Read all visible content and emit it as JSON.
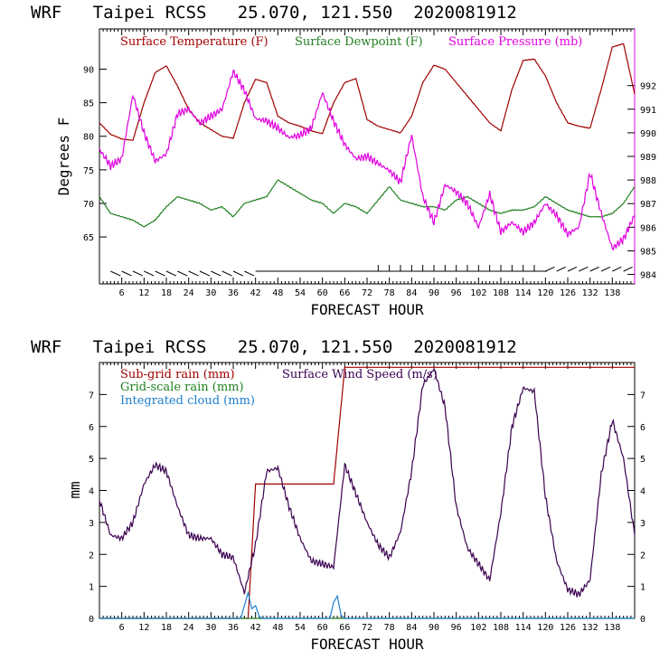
{
  "chart_data": [
    {
      "type": "line",
      "title": "WRF   Taipei RCSS   25.070, 121.550  2020081912",
      "xlabel": "FORECAST HOUR",
      "ylabel": "Degrees F",
      "xlim": [
        0,
        144
      ],
      "ylim": [
        58,
        96
      ],
      "y2lim": [
        983.6,
        994.4
      ],
      "x_ticks": [
        6,
        12,
        18,
        24,
        30,
        36,
        42,
        48,
        54,
        60,
        66,
        72,
        78,
        84,
        90,
        96,
        102,
        108,
        114,
        120,
        126,
        132,
        138
      ],
      "y_ticks": [
        65,
        70,
        75,
        80,
        85,
        90
      ],
      "y2_ticks": [
        984,
        985,
        986,
        987,
        988,
        989,
        990,
        991,
        992
      ],
      "series": [
        {
          "name": "Surface Temperature (F)",
          "color": "#a00000",
          "axis": "left",
          "x": [
            0,
            3,
            6,
            9,
            12,
            15,
            18,
            21,
            24,
            27,
            30,
            33,
            36,
            39,
            42,
            45,
            48,
            51,
            54,
            57,
            60,
            63,
            66,
            69,
            72,
            75,
            78,
            81,
            84,
            87,
            90,
            93,
            96,
            99,
            102,
            105,
            108,
            111,
            114,
            117,
            120,
            123,
            126,
            129,
            132,
            135,
            138,
            141,
            144
          ],
          "values": [
            82.0,
            80.3,
            79.6,
            79.4,
            85.0,
            89.5,
            90.5,
            87.5,
            84.0,
            82.0,
            81.0,
            80.0,
            79.7,
            85.0,
            88.5,
            88.0,
            83.0,
            82.0,
            81.5,
            80.8,
            80.4,
            85.0,
            88.0,
            88.6,
            82.5,
            81.5,
            81.0,
            80.5,
            83.0,
            88.0,
            90.6,
            90.0,
            88.0,
            86.0,
            84.0,
            82.0,
            80.8,
            87.0,
            91.3,
            91.5,
            89.0,
            85.0,
            82.0,
            81.5,
            81.2,
            87.0,
            93.3,
            93.8,
            86.3
          ]
        },
        {
          "name": "Surface Dewpoint (F)",
          "color": "#208020",
          "axis": "left",
          "x": [
            0,
            3,
            6,
            9,
            12,
            15,
            18,
            21,
            24,
            27,
            30,
            33,
            36,
            39,
            42,
            45,
            48,
            51,
            54,
            57,
            60,
            63,
            66,
            69,
            72,
            75,
            78,
            81,
            84,
            87,
            90,
            93,
            96,
            99,
            102,
            105,
            108,
            111,
            114,
            117,
            120,
            123,
            126,
            129,
            132,
            135,
            138,
            141,
            144
          ],
          "values": [
            71.0,
            68.5,
            68.0,
            67.5,
            66.5,
            67.5,
            69.5,
            71.0,
            70.5,
            70.0,
            69.0,
            69.5,
            68.0,
            70.0,
            70.5,
            71.0,
            73.5,
            72.5,
            71.5,
            70.5,
            70.0,
            68.5,
            70.0,
            69.5,
            68.5,
            70.5,
            72.5,
            70.5,
            70.0,
            69.5,
            69.5,
            69.0,
            70.5,
            71.0,
            70.0,
            69.0,
            68.5,
            69.0,
            69.0,
            69.5,
            71.0,
            70.0,
            69.0,
            68.5,
            68.0,
            68.0,
            68.5,
            70.0,
            72.5
          ]
        },
        {
          "name": "Surface Pressure (mb)",
          "color": "#e000e0",
          "axis": "right",
          "x": [
            0,
            3,
            6,
            9,
            12,
            15,
            18,
            21,
            24,
            27,
            30,
            33,
            36,
            39,
            42,
            45,
            48,
            51,
            54,
            57,
            60,
            63,
            66,
            69,
            72,
            75,
            78,
            81,
            84,
            87,
            90,
            93,
            96,
            99,
            102,
            105,
            108,
            111,
            114,
            117,
            120,
            123,
            126,
            129,
            132,
            135,
            138,
            141,
            144
          ],
          "values": [
            989.3,
            988.6,
            988.9,
            991.6,
            990.0,
            988.8,
            989.1,
            990.8,
            991.0,
            990.4,
            990.7,
            991.0,
            992.6,
            991.8,
            990.6,
            990.5,
            990.2,
            989.8,
            989.9,
            990.2,
            991.7,
            990.5,
            989.5,
            988.9,
            989.0,
            988.7,
            988.4,
            987.9,
            989.9,
            987.3,
            986.2,
            987.8,
            987.5,
            987.0,
            986.0,
            987.4,
            985.8,
            986.2,
            985.8,
            986.2,
            987.0,
            986.5,
            985.7,
            986.0,
            988.3,
            986.6,
            985.1,
            985.5,
            986.5
          ]
        }
      ]
    },
    {
      "type": "line",
      "title": "WRF   Taipei RCSS   25.070, 121.550  2020081912",
      "xlabel": "FORECAST HOUR",
      "ylabel": "mm",
      "xlim": [
        0,
        144
      ],
      "ylim": [
        0,
        8
      ],
      "y2lim": [
        0,
        8
      ],
      "x_ticks": [
        6,
        12,
        18,
        24,
        30,
        36,
        42,
        48,
        54,
        60,
        66,
        72,
        78,
        84,
        90,
        96,
        102,
        108,
        114,
        120,
        126,
        132,
        138
      ],
      "y_ticks": [
        0,
        1,
        2,
        3,
        4,
        5,
        6,
        7
      ],
      "y2_ticks": [
        0,
        1,
        2,
        3,
        4,
        5,
        6,
        7
      ],
      "series": [
        {
          "name": "Sub-grid rain (mm)",
          "color": "#a00000",
          "axis": "left",
          "x": [
            0,
            40,
            42,
            63,
            66,
            144
          ],
          "values": [
            0,
            0,
            4.2,
            4.2,
            7.85,
            7.85
          ]
        },
        {
          "name": "Grid-scale rain (mm)",
          "color": "#208020",
          "axis": "left",
          "x": [
            0,
            144
          ],
          "values": [
            0,
            0
          ]
        },
        {
          "name": "Integrated cloud (mm)",
          "color": "#1e7fd0",
          "axis": "left",
          "x": [
            0,
            38,
            40,
            41,
            42,
            43,
            44,
            62,
            63,
            64,
            65,
            66,
            144
          ],
          "values": [
            0,
            0,
            0.8,
            0.3,
            0.4,
            0.05,
            0,
            0,
            0.5,
            0.7,
            0.1,
            0,
            0
          ]
        },
        {
          "name": "Surface Wind Speed (m/s)",
          "color": "#3a0050",
          "axis": "right",
          "x": [
            0,
            3,
            6,
            9,
            12,
            15,
            18,
            21,
            24,
            27,
            30,
            33,
            36,
            39,
            42,
            45,
            48,
            51,
            54,
            57,
            60,
            63,
            66,
            69,
            72,
            75,
            78,
            81,
            84,
            87,
            90,
            93,
            96,
            99,
            102,
            105,
            108,
            111,
            114,
            117,
            120,
            123,
            126,
            129,
            132,
            135,
            138,
            141,
            144
          ],
          "values": [
            3.7,
            2.6,
            2.5,
            3.0,
            4.2,
            4.8,
            4.6,
            3.5,
            2.6,
            2.5,
            2.5,
            2.0,
            1.9,
            0.8,
            2.3,
            4.6,
            4.7,
            3.5,
            2.5,
            1.8,
            1.7,
            1.6,
            4.8,
            3.9,
            3.0,
            2.3,
            1.9,
            2.7,
            4.6,
            7.3,
            7.8,
            6.6,
            3.5,
            2.2,
            1.7,
            1.2,
            3.3,
            6.0,
            7.2,
            7.1,
            3.8,
            1.8,
            0.9,
            0.75,
            1.2,
            4.5,
            6.2,
            5.0,
            2.6
          ]
        }
      ]
    }
  ]
}
